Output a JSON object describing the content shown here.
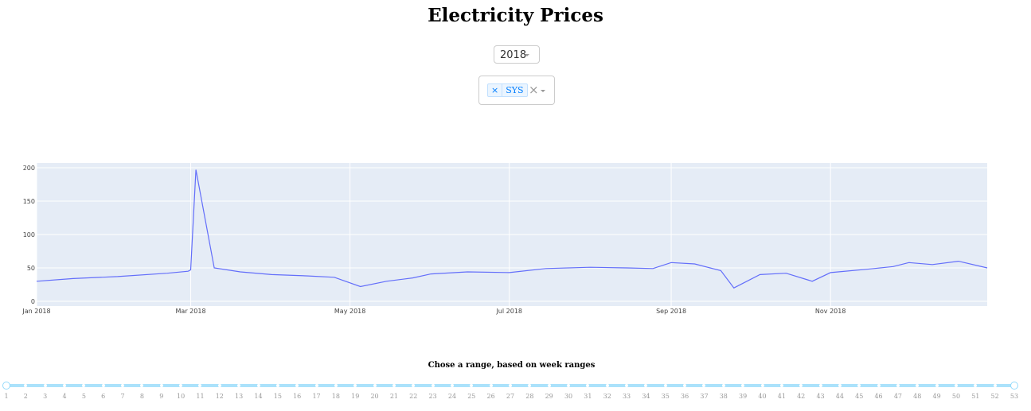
{
  "page": {
    "title": "Electricity Prices"
  },
  "year_dropdown": {
    "value": "2018"
  },
  "area_dropdown": {
    "tags": [
      "SYS"
    ],
    "clear_symbol": "×",
    "remove_symbol": "×"
  },
  "chart_data": {
    "type": "line",
    "title": "",
    "xlabel": "",
    "ylabel": "",
    "series": [
      {
        "name": "SYS",
        "color": "#636efa",
        "x": [
          "2018-01-01",
          "2018-01-15",
          "2018-02-01",
          "2018-02-20",
          "2018-02-28",
          "2018-03-01",
          "2018-03-03",
          "2018-03-10",
          "2018-03-20",
          "2018-04-01",
          "2018-04-15",
          "2018-04-25",
          "2018-05-05",
          "2018-05-15",
          "2018-05-25",
          "2018-06-01",
          "2018-06-15",
          "2018-07-01",
          "2018-07-15",
          "2018-08-01",
          "2018-08-15",
          "2018-08-25",
          "2018-09-01",
          "2018-09-10",
          "2018-09-20",
          "2018-09-25",
          "2018-10-05",
          "2018-10-15",
          "2018-10-25",
          "2018-11-01",
          "2018-11-15",
          "2018-11-25",
          "2018-12-01",
          "2018-12-10",
          "2018-12-20",
          "2018-12-31"
        ],
        "y": [
          30,
          34,
          37,
          42,
          45,
          47,
          197,
          50,
          44,
          40,
          38,
          36,
          22,
          30,
          35,
          41,
          44,
          43,
          49,
          51,
          50,
          49,
          58,
          56,
          46,
          20,
          40,
          42,
          30,
          43,
          48,
          52,
          58,
          55,
          60,
          50
        ]
      }
    ],
    "xlim": [
      "2018-01-01",
      "2018-12-31"
    ],
    "ylim": [
      0,
      200
    ],
    "y_ticks": [
      "0",
      "50",
      "100",
      "150",
      "200"
    ],
    "x_ticks": [
      {
        "date": "2018-01-01",
        "label": "Jan 2018"
      },
      {
        "date": "2018-03-01",
        "label": "Mar 2018"
      },
      {
        "date": "2018-05-01",
        "label": "May 2018"
      },
      {
        "date": "2018-07-01",
        "label": "Jul 2018"
      },
      {
        "date": "2018-09-01",
        "label": "Sep 2018"
      },
      {
        "date": "2018-11-01",
        "label": "Nov 2018"
      }
    ],
    "grid": true,
    "plot_bg": "#e5ecf6"
  },
  "week_slider": {
    "label": "Chose a range, based on week ranges",
    "min": 1,
    "max": 53,
    "range": [
      1,
      53
    ],
    "marks": [
      "1",
      "2",
      "3",
      "4",
      "5",
      "6",
      "7",
      "8",
      "9",
      "10",
      "11",
      "12",
      "13",
      "14",
      "15",
      "16",
      "17",
      "18",
      "19",
      "20",
      "21",
      "22",
      "23",
      "24",
      "25",
      "26",
      "27",
      "28",
      "29",
      "30",
      "31",
      "32",
      "33",
      "34",
      "35",
      "36",
      "37",
      "38",
      "39",
      "40",
      "41",
      "42",
      "43",
      "44",
      "45",
      "46",
      "47",
      "48",
      "49",
      "50",
      "51",
      "52",
      "53"
    ],
    "track_color": "#abe2fb"
  }
}
